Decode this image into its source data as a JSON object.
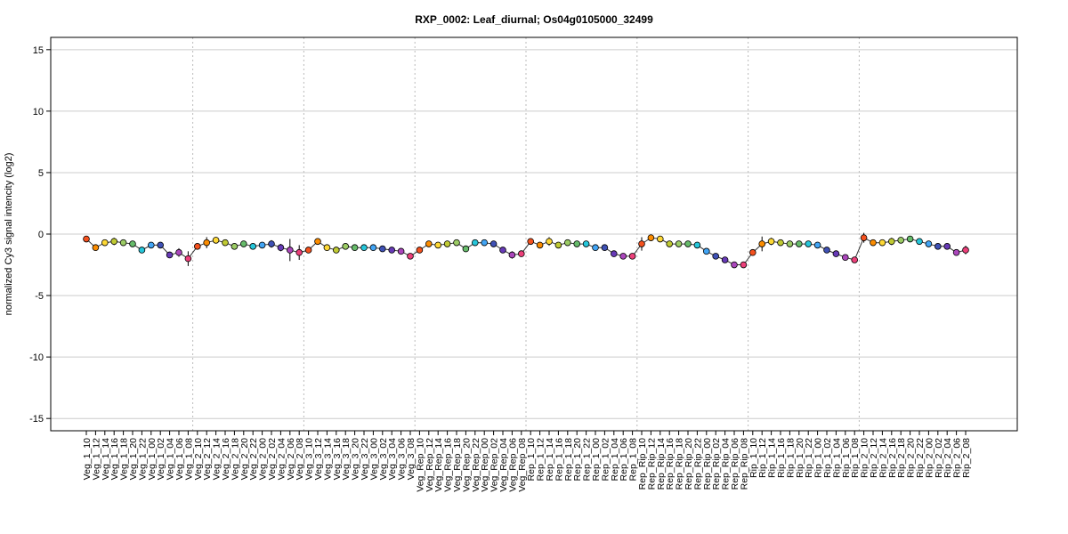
{
  "chart_data": {
    "type": "line",
    "title": "RXP_0002: Leaf_diurnal; Os04g0105000_32499",
    "ylabel": "normalized Cy3 signal intencity (log2)",
    "xlabel": "",
    "ylim": [
      -16,
      16
    ],
    "yticks": [
      -15,
      -10,
      -5,
      0,
      5,
      10,
      15
    ],
    "grid": true,
    "categories": [
      "Veg_1_10",
      "Veg_1_12",
      "Veg_1_14",
      "Veg_1_16",
      "Veg_1_18",
      "Veg_1_20",
      "Veg_1_22",
      "Veg_1_00",
      "Veg_1_02",
      "Veg_1_04",
      "Veg_1_06",
      "Veg_1_08",
      "Veg_2_10",
      "Veg_2_12",
      "Veg_2_14",
      "Veg_2_16",
      "Veg_2_18",
      "Veg_2_20",
      "Veg_2_22",
      "Veg_2_00",
      "Veg_2_02",
      "Veg_2_04",
      "Veg_2_06",
      "Veg_2_08",
      "Veg_3_10",
      "Veg_3_12",
      "Veg_3_14",
      "Veg_3_16",
      "Veg_3_18",
      "Veg_3_20",
      "Veg_3_22",
      "Veg_3_00",
      "Veg_3_02",
      "Veg_3_04",
      "Veg_3_06",
      "Veg_3_08",
      "Veg_Rep_10",
      "Veg_Rep_12",
      "Veg_Rep_14",
      "Veg_Rep_16",
      "Veg_Rep_18",
      "Veg_Rep_20",
      "Veg_Rep_22",
      "Veg_Rep_00",
      "Veg_Rep_02",
      "Veg_Rep_04",
      "Veg_Rep_06",
      "Veg_Rep_08",
      "Rep_1_10",
      "Rep_1_12",
      "Rep_1_14",
      "Rep_1_16",
      "Rep_1_18",
      "Rep_1_20",
      "Rep_1_22",
      "Rep_1_00",
      "Rep_1_02",
      "Rep_1_04",
      "Rep_1_06",
      "Rep_1_08",
      "Rep_Rip_10",
      "Rep_Rip_12",
      "Rep_Rip_14",
      "Rep_Rip_16",
      "Rep_Rip_18",
      "Rep_Rip_20",
      "Rep_Rip_22",
      "Rep_Rip_00",
      "Rep_Rip_02",
      "Rep_Rip_04",
      "Rep_Rip_06",
      "Rep_Rip_08",
      "Rip_1_10",
      "Rip_1_12",
      "Rip_1_14",
      "Rip_1_16",
      "Rip_1_18",
      "Rip_1_20",
      "Rip_1_22",
      "Rip_1_00",
      "Rip_1_02",
      "Rip_1_04",
      "Rip_1_06",
      "Rip_1_08",
      "Rip_2_10",
      "Rip_2_12",
      "Rip_2_14",
      "Rip_2_16",
      "Rip_2_18",
      "Rip_2_20",
      "Rip_2_22",
      "Rip_2_00",
      "Rip_2_02",
      "Rip_2_04",
      "Rip_2_06",
      "Rip_2_08"
    ],
    "series": [
      {
        "values": [
          -0.4,
          -1.1,
          -0.7,
          -0.6,
          -0.7,
          -0.8,
          -1.3,
          -0.9,
          -0.9,
          -1.7,
          -1.5,
          -2.0,
          -1.0,
          -0.7,
          -0.5,
          -0.7,
          -1.0,
          -0.8,
          -1.0,
          -0.9,
          -0.8,
          -1.1,
          -1.3,
          -1.5,
          -1.3,
          -0.6,
          -1.1,
          -1.3,
          -1.0,
          -1.1,
          -1.1,
          -1.1,
          -1.2,
          -1.3,
          -1.4,
          -1.8,
          -1.3,
          -0.8,
          -0.9,
          -0.8,
          -0.7,
          -1.2,
          -0.7,
          -0.7,
          -0.8,
          -1.3,
          -1.7,
          -1.6,
          -0.6,
          -0.9,
          -0.6,
          -0.9,
          -0.7,
          -0.8,
          -0.8,
          -1.1,
          -1.1,
          -1.6,
          -1.8,
          -1.8,
          -0.8,
          -0.3,
          -0.4,
          -0.8,
          -0.8,
          -0.8,
          -0.9,
          -1.4,
          -1.8,
          -2.1,
          -2.5,
          -2.5,
          -1.5,
          -0.8,
          -0.6,
          -0.7,
          -0.8,
          -0.8,
          -0.8,
          -0.9,
          -1.3,
          -1.6,
          -1.9,
          -2.1,
          -0.3,
          -0.7,
          -0.7,
          -0.6,
          -0.5,
          -0.4,
          -0.6,
          -0.8,
          -1.0,
          -1.0,
          -1.5,
          -1.3
        ],
        "errors": [
          0.15,
          0.2,
          0.15,
          0.3,
          0.15,
          0.15,
          0.15,
          0.15,
          0.15,
          0.15,
          0.35,
          0.6,
          0.2,
          0.45,
          0.15,
          0.2,
          0.15,
          0.15,
          0.15,
          0.15,
          0.3,
          0.3,
          0.9,
          0.6,
          0.2,
          0.2,
          0.15,
          0.15,
          0.15,
          0.15,
          0.15,
          0.2,
          0.15,
          0.15,
          0.15,
          0.15,
          0.25,
          0.15,
          0.15,
          0.15,
          0.15,
          0.15,
          0.15,
          0.15,
          0.15,
          0.15,
          0.3,
          0.2,
          0.2,
          0.15,
          0.35,
          0.15,
          0.15,
          0.15,
          0.15,
          0.15,
          0.15,
          0.15,
          0.15,
          0.15,
          0.55,
          0.15,
          0.15,
          0.15,
          0.15,
          0.15,
          0.15,
          0.15,
          0.15,
          0.15,
          0.15,
          0.15,
          0.25,
          0.6,
          0.3,
          0.15,
          0.15,
          0.15,
          0.15,
          0.15,
          0.15,
          0.15,
          0.15,
          0.15,
          0.4,
          0.15,
          0.15,
          0.3,
          0.15,
          0.15,
          0.15,
          0.15,
          0.15,
          0.15,
          0.15,
          0.35
        ]
      }
    ],
    "colors": [
      "#f4511e",
      "#fb8c00",
      "#fdd835",
      "#c0ca33",
      "#9ccc65",
      "#66bb6a",
      "#26c6da",
      "#42a5f5",
      "#3f51b5",
      "#673ab7",
      "#ab47bc",
      "#ec407a"
    ],
    "group_separators_after": [
      12,
      24,
      36,
      48,
      60,
      72,
      84
    ]
  }
}
